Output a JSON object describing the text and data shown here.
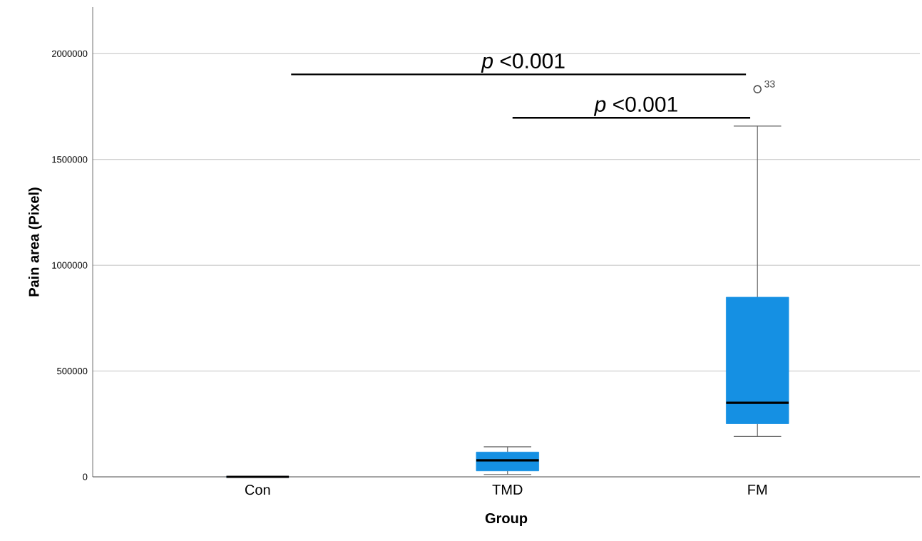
{
  "chart_data": {
    "type": "box",
    "xlabel": "Group",
    "ylabel": "Pain area (Pixel)",
    "categories": [
      "Con",
      "TMD",
      "FM"
    ],
    "color": "#1590e3",
    "boxes": [
      {
        "low": 0,
        "q1": 0,
        "median": 0,
        "q3": 0,
        "high": 0
      },
      {
        "low": 11000,
        "q1": 28000,
        "median": 78000,
        "q3": 117000,
        "high": 142000
      },
      {
        "low": 191000,
        "q1": 251000,
        "median": 350000,
        "q3": 849000,
        "high": 1658000,
        "outliers": [
          1832000
        ]
      }
    ],
    "ylim": [
      0,
      2220000
    ],
    "yticks": [
      0,
      500000,
      1000000,
      1500000,
      2000000
    ],
    "grid": "y",
    "annotations": [
      "*p* <0.001",
      "*p* <0.001",
      "33"
    ]
  }
}
